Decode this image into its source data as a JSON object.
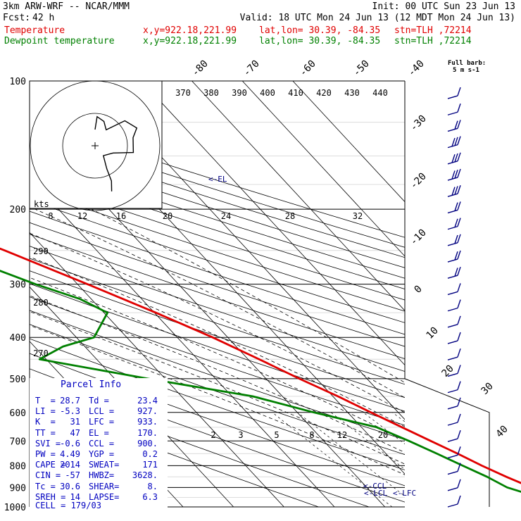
{
  "header": {
    "model": "3km ARW-WRF -- NCAR/MMM",
    "init": "Init: 00 UTC Sun 23 Jun 13",
    "fcst_label": "Fcst:",
    "fcst_value": "42 h",
    "valid": "Valid: 18 UTC Mon 24 Jun 13 (12 MDT Mon 24 Jun 13)",
    "temp_line": {
      "label": "Temperature",
      "xy": "x,y=922.18,221.99",
      "latlon": "lat,lon= 30.39, -84.35",
      "stn": "stn=TLH ,72214",
      "color": "#e00000"
    },
    "dew_line": {
      "label": "Dewpoint temperature",
      "xy": "x,y=922.18,221.99",
      "latlon": "lat,lon= 30.39, -84.35",
      "stn": "stn=TLH ,72214",
      "color": "#008000"
    }
  },
  "legend_barb": {
    "line1": "Full barb:",
    "line2": "5 m s-1"
  },
  "parcel_info": {
    "title": "Parcel Info",
    "rows": [
      [
        "T  =",
        "28.7",
        "Td =",
        "23.4"
      ],
      [
        "LI =",
        "-5.3",
        "LCL =",
        "927."
      ],
      [
        "K  =",
        "31",
        "LFC =",
        "933."
      ],
      [
        "TT =",
        "47",
        "EL =",
        "170."
      ],
      [
        "SVI =",
        "-0.6",
        "CCL =",
        "900."
      ],
      [
        "PW =",
        "4.49",
        "YGP =",
        "0.2"
      ],
      [
        "CAPE =",
        "2014",
        "SWEAT=",
        "171"
      ],
      [
        "CIN =",
        "-57",
        "HWBZ=",
        "3628."
      ],
      [
        "Tc =",
        "30.6",
        "SHEAR=",
        "8."
      ],
      [
        "SREH =",
        "14",
        "LAPSE=",
        "6.3"
      ]
    ],
    "cell": "CELL = 179/03"
  },
  "level_labels": {
    "el": "<-EL",
    "ccl": "<-CCL",
    "lcl": "<-LCL",
    "lfc": "<-LFC"
  },
  "hodograph": {
    "kts_label": "kts",
    "speed_ticks": [
      "8",
      "12",
      "16",
      "20",
      "24",
      "28",
      "32"
    ]
  },
  "chart_data": {
    "type": "line",
    "title": "",
    "ylabel": "",
    "xlabel": "",
    "y_scale": "log-pressure",
    "ylim": [
      1000,
      100
    ],
    "pressure_ticks": [
      100,
      200,
      300,
      400,
      500,
      600,
      700,
      800,
      900,
      1000
    ],
    "isotherm_ticks": [
      -80,
      -70,
      -60,
      -50,
      -40,
      -30,
      -20,
      -10,
      0,
      10,
      20,
      30,
      40
    ],
    "theta_ticks_top": [
      370,
      380,
      390,
      400,
      410,
      420,
      430,
      440
    ],
    "theta_ticks_left": [
      290,
      280,
      270
    ],
    "mixing_ratio_ticks": [
      "2",
      "3",
      "5",
      "8",
      "12",
      "20"
    ],
    "series": [
      {
        "name": "Temperature",
        "color": "#e00000",
        "points": [
          [
            1000,
            30.6
          ],
          [
            975,
            27.7
          ],
          [
            950,
            26.2
          ],
          [
            925,
            24.2
          ],
          [
            900,
            22.6
          ],
          [
            850,
            19.6
          ],
          [
            800,
            16.8
          ],
          [
            750,
            14.2
          ],
          [
            700,
            11.2
          ],
          [
            650,
            8.0
          ],
          [
            600,
            4.6
          ],
          [
            550,
            1.0
          ],
          [
            500,
            -3.4
          ],
          [
            450,
            -7.8
          ],
          [
            400,
            -13.0
          ],
          [
            350,
            -19.7
          ],
          [
            300,
            -28.0
          ],
          [
            250,
            -38.2
          ],
          [
            200,
            -51.6
          ],
          [
            175,
            -59.3
          ],
          [
            160,
            -60.9
          ],
          [
            150,
            -60.4
          ],
          [
            125,
            -65.7
          ],
          [
            100,
            -71.3
          ]
        ]
      },
      {
        "name": "Dewpoint temperature",
        "color": "#008000",
        "points": [
          [
            1000,
            23.4
          ],
          [
            975,
            22.6
          ],
          [
            950,
            22.2
          ],
          [
            925,
            20.1
          ],
          [
            900,
            17.8
          ],
          [
            850,
            15.8
          ],
          [
            800,
            13.0
          ],
          [
            750,
            10.1
          ],
          [
            700,
            6.9
          ],
          [
            650,
            3.0
          ],
          [
            600,
            -6.7
          ],
          [
            550,
            -15.9
          ],
          [
            500,
            -33.4
          ],
          [
            450,
            -51.3
          ],
          [
            420,
            -44.3
          ],
          [
            400,
            -36.5
          ],
          [
            350,
            -29.3
          ],
          [
            325,
            -32.2
          ],
          [
            300,
            -38.3
          ],
          [
            250,
            -49.8
          ],
          [
            200,
            -59.4
          ],
          [
            175,
            -68.0
          ],
          [
            150,
            -79.8
          ],
          [
            125,
            -84.3
          ],
          [
            100,
            -90.0
          ]
        ]
      }
    ],
    "hodograph_trace": [
      [
        5,
        180
      ],
      [
        9,
        184
      ],
      [
        8,
        200
      ],
      [
        6,
        215
      ],
      [
        12,
        230
      ],
      [
        14,
        247
      ],
      [
        12,
        258
      ],
      [
        12,
        280
      ],
      [
        6,
        292
      ],
      [
        4,
        320
      ],
      [
        8,
        333
      ],
      [
        12,
        335
      ],
      [
        15,
        340
      ]
    ],
    "wind_barb_speeds_ms": [
      5,
      5,
      10,
      15,
      15,
      15,
      15,
      10,
      10,
      10,
      10,
      10,
      5,
      5,
      5,
      5,
      5,
      5,
      5,
      5,
      5,
      5,
      5,
      5,
      5,
      5
    ]
  }
}
